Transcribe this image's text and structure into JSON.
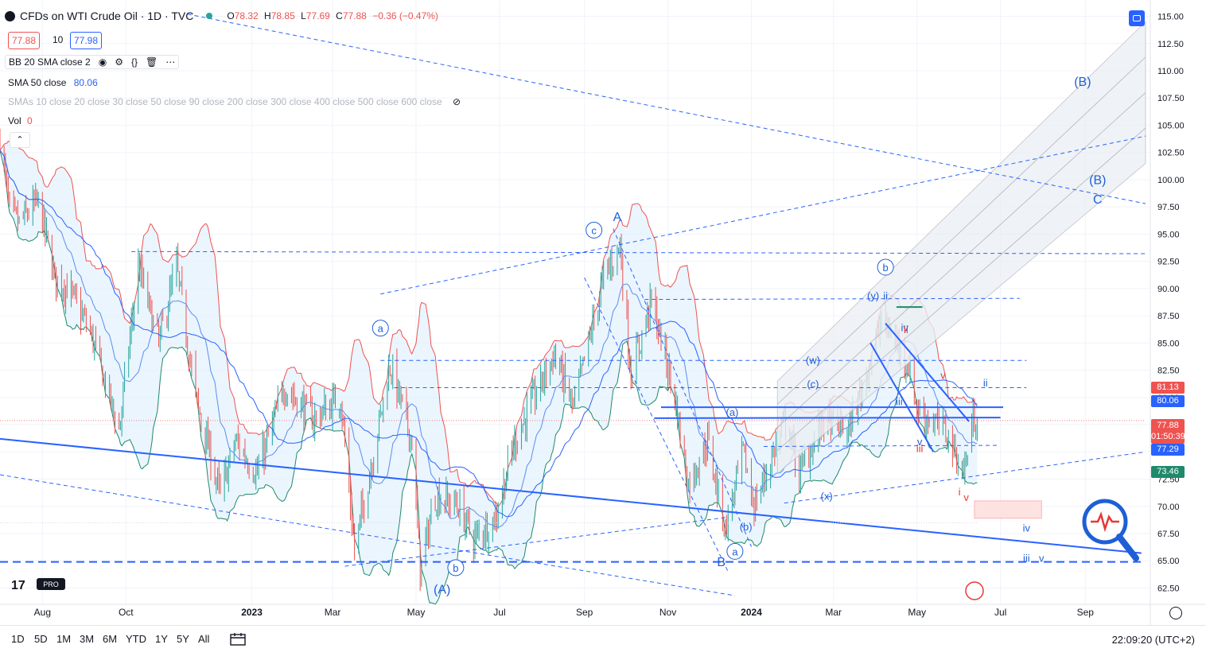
{
  "header": {
    "title": "CFDs on WTI Crude Oil · 1D · TVC",
    "o_label": "O",
    "o": "78.32",
    "h_label": "H",
    "h": "78.85",
    "l_label": "L",
    "l": "77.69",
    "c_label": "C",
    "c": "77.88",
    "change": "−0.36 (−0.47%)",
    "bid": "77.88",
    "spread": "10",
    "ask": "77.98"
  },
  "indicators": {
    "bb": "BB 20 SMA close 2",
    "sma_label": "SMA 50 close",
    "sma_value": "80.06",
    "smas": "SMAs 10 close 20 close 30 close 50 close 90 close 200 close 300 close 400 close 500 close 600 close",
    "vol_label": "Vol",
    "vol_value": "0"
  },
  "tags": {
    "bb_upper": "81.13",
    "sma50": "80.06",
    "last": "77.88",
    "countdown": "01:50:39",
    "bb_basis": "77.29",
    "bb_lower": "73.46"
  },
  "toolbar": {
    "ranges": [
      "1D",
      "5D",
      "1M",
      "3M",
      "6M",
      "YTD",
      "1Y",
      "5Y",
      "All"
    ],
    "clock": "22:09:20 (UTC+2)"
  },
  "colors": {
    "up": "#26a69a",
    "down": "#ef5350",
    "accent": "#2962ff",
    "bb_upper": "#ef5350",
    "bb_lower": "#1e8a6a",
    "bb_fill": "#e3f2fd"
  },
  "chart_data": {
    "type": "candlestick",
    "symbol": "CFDs on WTI Crude Oil",
    "interval": "1D",
    "y_axis": {
      "position": "right",
      "ticks": [
        "115.00",
        "112.50",
        "110.00",
        "107.50",
        "105.00",
        "102.50",
        "100.00",
        "97.50",
        "95.00",
        "92.50",
        "90.00",
        "87.50",
        "85.00",
        "82.50",
        "80.00",
        "77.50",
        "75.00",
        "72.50",
        "70.00",
        "67.50",
        "65.00",
        "62.50"
      ],
      "range": [
        61.0,
        116.5
      ]
    },
    "x_axis": {
      "ticks": [
        {
          "label": "Aug",
          "t": "2022-08-01"
        },
        {
          "label": "Oct",
          "t": "2022-10-01"
        },
        {
          "label": "2023",
          "t": "2023-01-01"
        },
        {
          "label": "Mar",
          "t": "2023-03-01"
        },
        {
          "label": "May",
          "t": "2023-05-01"
        },
        {
          "label": "Jul",
          "t": "2023-07-01"
        },
        {
          "label": "Sep",
          "t": "2023-09-01"
        },
        {
          "label": "Nov",
          "t": "2023-11-01"
        },
        {
          "label": "2024",
          "t": "2024-01-01"
        },
        {
          "label": "Mar",
          "t": "2024-03-01"
        },
        {
          "label": "May",
          "t": "2024-05-01"
        },
        {
          "label": "Jul",
          "t": "2024-07-01"
        },
        {
          "label": "Sep",
          "t": "2024-09-01"
        }
      ],
      "range": [
        "2022-07-01",
        "2024-10-15"
      ]
    },
    "price_path": [
      [
        "2022-07-01",
        104
      ],
      [
        "2022-07-08",
        97
      ],
      [
        "2022-07-15",
        96
      ],
      [
        "2022-07-29",
        98
      ],
      [
        "2022-08-10",
        91
      ],
      [
        "2022-08-20",
        90
      ],
      [
        "2022-09-05",
        86
      ],
      [
        "2022-09-26",
        77
      ],
      [
        "2022-10-10",
        92
      ],
      [
        "2022-10-25",
        85
      ],
      [
        "2022-11-07",
        92
      ],
      [
        "2022-11-21",
        80
      ],
      [
        "2022-12-09",
        71
      ],
      [
        "2022-12-20",
        76
      ],
      [
        "2023-01-05",
        73
      ],
      [
        "2023-01-25",
        81
      ],
      [
        "2023-02-15",
        78
      ],
      [
        "2023-03-07",
        80
      ],
      [
        "2023-03-17",
        66
      ],
      [
        "2023-03-28",
        73
      ],
      [
        "2023-04-12",
        83
      ],
      [
        "2023-04-28",
        76
      ],
      [
        "2023-05-04",
        64
      ],
      [
        "2023-05-15",
        71
      ],
      [
        "2023-06-01",
        70
      ],
      [
        "2023-06-12",
        67
      ],
      [
        "2023-06-28",
        69
      ],
      [
        "2023-07-12",
        76
      ],
      [
        "2023-08-10",
        84
      ],
      [
        "2023-08-24",
        79
      ],
      [
        "2023-09-15",
        91
      ],
      [
        "2023-09-27",
        94
      ],
      [
        "2023-10-05",
        82
      ],
      [
        "2023-10-20",
        89
      ],
      [
        "2023-11-06",
        80
      ],
      [
        "2023-11-16",
        72
      ],
      [
        "2023-11-30",
        76
      ],
      [
        "2023-12-13",
        68
      ],
      [
        "2023-12-26",
        75
      ],
      [
        "2024-01-03",
        70
      ],
      [
        "2024-01-26",
        78
      ],
      [
        "2024-02-05",
        73
      ],
      [
        "2024-02-23",
        78
      ],
      [
        "2024-03-12",
        77
      ],
      [
        "2024-03-22",
        81
      ],
      [
        "2024-04-05",
        87
      ],
      [
        "2024-04-12",
        86
      ],
      [
        "2024-04-25",
        83
      ],
      [
        "2024-05-01",
        79
      ],
      [
        "2024-05-10",
        78
      ],
      [
        "2024-05-22",
        77
      ],
      [
        "2024-06-04",
        73
      ],
      [
        "2024-06-11",
        78
      ],
      [
        "2024-06-14",
        77.88
      ]
    ],
    "indicators": {
      "bb": {
        "period": 20,
        "mult": 2,
        "upper_last": 81.13,
        "basis_last": 77.29,
        "lower_last": 73.46
      },
      "sma50_last": 80.06
    },
    "horizontal_lines": [
      93.4,
      89.0,
      83.4,
      80.9,
      78.5,
      78.15,
      75.5,
      64.9
    ],
    "wave_labels": [
      {
        "text": "A",
        "t": "2023-09-25",
        "p": 96.2,
        "circle": false,
        "color": "blue"
      },
      {
        "text": "c",
        "t": "2023-09-08",
        "p": 95.0,
        "circle": true,
        "color": "blue"
      },
      {
        "text": "a",
        "t": "2023-04-05",
        "p": 86.0,
        "circle": true,
        "color": "blue"
      },
      {
        "text": "b",
        "t": "2023-05-30",
        "p": 64.0,
        "circle": true,
        "color": "blue"
      },
      {
        "text": "(A)",
        "t": "2023-05-20",
        "p": 62.0,
        "circle": false,
        "color": "blue"
      },
      {
        "text": "B",
        "t": "2023-12-10",
        "p": 64.5,
        "circle": false,
        "color": "blue"
      },
      {
        "text": "a",
        "t": "2023-12-20",
        "p": 65.5,
        "circle": true,
        "color": "blue"
      },
      {
        "text": "(b)",
        "t": "2023-12-28",
        "p": 67.8,
        "circle": false,
        "color": "blue"
      },
      {
        "text": "(a)",
        "t": "2023-12-18",
        "p": 78.3,
        "circle": false,
        "color": "blue"
      },
      {
        "text": "(c)",
        "t": "2024-02-15",
        "p": 80.9,
        "circle": false,
        "color": "blue"
      },
      {
        "text": "(w)",
        "t": "2024-02-15",
        "p": 83.1,
        "circle": false,
        "color": "blue"
      },
      {
        "text": "(x)",
        "t": "2024-02-25",
        "p": 70.6,
        "circle": false,
        "color": "blue"
      },
      {
        "text": "b",
        "t": "2024-04-08",
        "p": 91.6,
        "circle": true,
        "color": "blue"
      },
      {
        "text": "(y)",
        "t": "2024-03-30",
        "p": 89.0,
        "circle": false,
        "color": "blue"
      },
      {
        "text": "ii",
        "t": "2024-04-08",
        "p": 89.0,
        "circle": false,
        "color": "blue"
      },
      {
        "text": "iv",
        "t": "2024-04-22",
        "p": 86.1,
        "circle": false,
        "color": "blue"
      },
      {
        "text": "ii",
        "t": "2024-04-23",
        "p": 85.9,
        "circle": false,
        "color": "red"
      },
      {
        "text": "iii",
        "t": "2024-04-18",
        "p": 79.3,
        "circle": false,
        "color": "blue"
      },
      {
        "text": "v",
        "t": "2024-05-03",
        "p": 75.6,
        "circle": false,
        "color": "blue"
      },
      {
        "text": "iii",
        "t": "2024-05-03",
        "p": 75.0,
        "circle": false,
        "color": "red"
      },
      {
        "text": "v",
        "t": "2024-05-20",
        "p": 81.7,
        "circle": false,
        "color": "red"
      },
      {
        "text": "ii",
        "t": "2024-06-20",
        "p": 81.0,
        "circle": false,
        "color": "blue"
      },
      {
        "text": "i",
        "t": "2024-06-01",
        "p": 71.0,
        "circle": false,
        "color": "red"
      },
      {
        "text": "v",
        "t": "2024-06-06",
        "p": 70.5,
        "circle": false,
        "color": "red"
      },
      {
        "text": "iv",
        "t": "2024-07-20",
        "p": 67.7,
        "circle": false,
        "color": "blue"
      },
      {
        "text": "iii",
        "t": "2024-07-20",
        "p": 64.9,
        "circle": false,
        "color": "blue"
      },
      {
        "text": "v",
        "t": "2024-07-31",
        "p": 64.9,
        "circle": false,
        "color": "blue"
      },
      {
        "text": "(B)",
        "t": "2024-08-30",
        "p": 108.6,
        "circle": false,
        "color": "blue"
      },
      {
        "text": "(B)",
        "t": "2024-09-10",
        "p": 99.6,
        "circle": false,
        "color": "blue"
      },
      {
        "text": "C",
        "t": "2024-09-10",
        "p": 97.8,
        "circle": false,
        "color": "blue"
      }
    ],
    "target_zone": {
      "t0": "2024-06-12",
      "t1": "2024-07-31",
      "p0": 68.9,
      "p1": 70.5
    },
    "grid": true
  }
}
